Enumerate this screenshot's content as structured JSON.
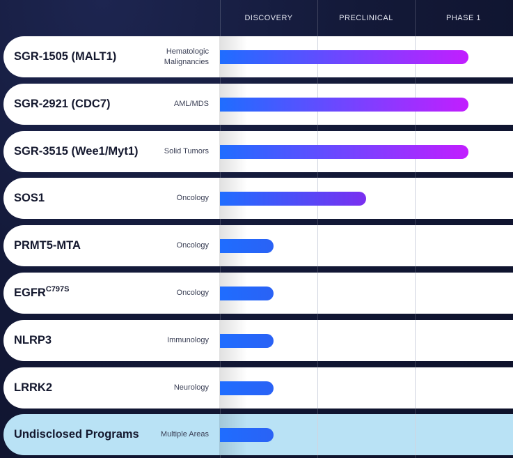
{
  "columns": [
    "DISCOVERY",
    "PRECLINICAL",
    "PHASE 1"
  ],
  "colors": {
    "bar_start": "#1f6dff",
    "bar_end": "#c21eff",
    "row_bg": "#ffffff",
    "undisclosed_bg": "#b9e2f5"
  },
  "chart_data": {
    "type": "bar",
    "orientation": "horizontal",
    "stages": [
      "DISCOVERY",
      "PRECLINICAL",
      "PHASE 1"
    ],
    "programs": [
      {
        "name": "SGR-1505 (MALT1)",
        "indication": [
          "Hematologic",
          "Malignancies"
        ],
        "progress": 2.55
      },
      {
        "name": "SGR-2921 (CDC7)",
        "indication": [
          "AML/MDS"
        ],
        "progress": 2.55
      },
      {
        "name": "SGR-3515 (Wee1/Myt1)",
        "indication": [
          "Solid Tumors"
        ],
        "progress": 2.55
      },
      {
        "name": "SOS1",
        "indication": [
          "Oncology"
        ],
        "progress": 1.5
      },
      {
        "name": "PRMT5-MTA",
        "indication": [
          "Oncology"
        ],
        "progress": 0.55
      },
      {
        "name": "EGFR",
        "name_sup": "C797S",
        "indication": [
          "Oncology"
        ],
        "progress": 0.55
      },
      {
        "name": "NLRP3",
        "indication": [
          "Immunology"
        ],
        "progress": 0.55
      },
      {
        "name": "LRRK2",
        "indication": [
          "Neurology"
        ],
        "progress": 0.55
      },
      {
        "name": "Undisclosed Programs",
        "indication": [
          "Multiple Areas"
        ],
        "progress": 0.55,
        "highlight": true
      }
    ],
    "xlim": [
      0,
      3
    ],
    "legend": "none",
    "grid": true
  }
}
